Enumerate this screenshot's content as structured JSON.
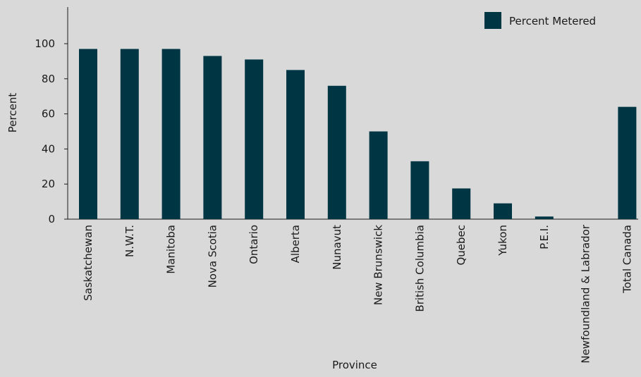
{
  "chart_data": {
    "type": "bar",
    "categories": [
      "Saskatchewan",
      "N.W.T.",
      "Manitoba",
      "Nova Scotia",
      "Ontario",
      "Alberta",
      "Nunavut",
      "New Brunswick",
      "British Columbia",
      "Quebec",
      "Yukon",
      "P.E.I.",
      "Newfoundland & Labrador",
      "Total Canada"
    ],
    "series": [
      {
        "name": "Percent Metered",
        "values": [
          97,
          97,
          97,
          93,
          91,
          85,
          76,
          50,
          33,
          17.5,
          9,
          1.5,
          0,
          64
        ],
        "color": "#003644"
      }
    ],
    "xlabel": "Province",
    "ylabel": "Percent",
    "ylim": [
      0,
      120
    ],
    "yticks": [
      0,
      20,
      40,
      60,
      80,
      100
    ],
    "grid": false,
    "legend_position": "top-right",
    "background": "#d9d9d9"
  }
}
